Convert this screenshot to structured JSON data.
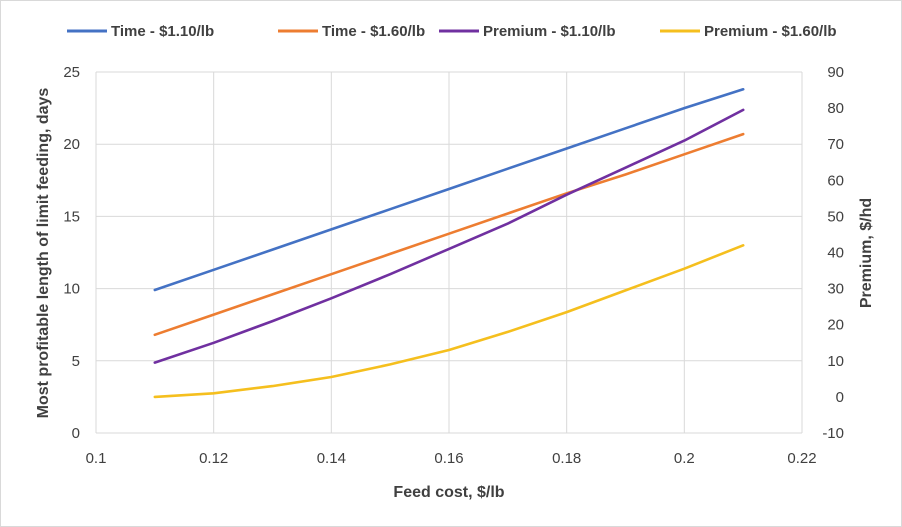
{
  "chart_data": {
    "type": "line",
    "x": [
      0.11,
      0.12,
      0.13,
      0.14,
      0.15,
      0.16,
      0.17,
      0.18,
      0.19,
      0.2,
      0.21
    ],
    "xlabel": "Feed cost, $/lb",
    "ylabel": "Most profitable length of limit feeding, days",
    "y2label": "Premium, $/hd",
    "xlim": [
      0.1,
      0.22
    ],
    "xticks": [
      "0.1",
      "0.12",
      "0.14",
      "0.16",
      "0.18",
      "0.2",
      "0.22"
    ],
    "ylim": [
      0,
      25
    ],
    "yticks": [
      "0",
      "5",
      "10",
      "15",
      "20",
      "25"
    ],
    "y2lim": [
      -10,
      90
    ],
    "y2ticks": [
      "-10",
      "0",
      "10",
      "20",
      "30",
      "40",
      "50",
      "60",
      "70",
      "80",
      "90"
    ],
    "grid": true,
    "legend": "top",
    "series": [
      {
        "name": "Time - $1.10/lb",
        "axis": "left",
        "color": "#4472C4",
        "values": [
          9.9,
          11.3,
          12.7,
          14.1,
          15.5,
          16.9,
          18.3,
          19.7,
          21.1,
          22.5,
          23.8
        ]
      },
      {
        "name": "Time - $1.60/lb",
        "axis": "left",
        "color": "#ED7D31",
        "values": [
          6.8,
          8.2,
          9.6,
          11.0,
          12.4,
          13.8,
          15.2,
          16.6,
          17.9,
          19.3,
          20.7
        ]
      },
      {
        "name": "Premium - $1.10/lb",
        "axis": "right",
        "color": "#7030A0",
        "values": [
          9.5,
          15.0,
          21.0,
          27.3,
          34.0,
          41.0,
          48.0,
          56.0,
          63.5,
          71.0,
          79.5
        ]
      },
      {
        "name": "Premium - $1.60/lb",
        "axis": "right",
        "color": "#F5BF1E",
        "values": [
          0.0,
          1.0,
          3.0,
          5.5,
          9.0,
          13.0,
          18.0,
          23.5,
          29.5,
          35.5,
          42.0
        ]
      }
    ]
  }
}
